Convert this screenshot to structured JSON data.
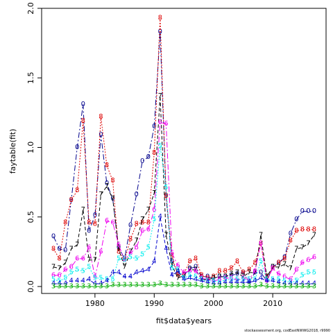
{
  "chart_data": {
    "type": "line",
    "xlabel": "fit$data$years",
    "ylabel": "faytable(fit)",
    "xlim": [
      1971,
      2019
    ],
    "ylim": [
      -0.05,
      2.0
    ],
    "xticks": [
      1980,
      1990,
      2000,
      2010
    ],
    "yticks": [
      0.0,
      0.5,
      1.0,
      1.5,
      2.0
    ],
    "ytick_labels": [
      "0.0",
      "0.5",
      "1.0",
      "1.5",
      "2.0"
    ],
    "grid": false,
    "legend": "none",
    "x": [
      1973,
      1974,
      1975,
      1976,
      1977,
      1978,
      1979,
      1980,
      1981,
      1982,
      1983,
      1984,
      1985,
      1986,
      1987,
      1988,
      1989,
      1990,
      1991,
      1992,
      1993,
      1994,
      1995,
      1996,
      1997,
      1998,
      1999,
      2000,
      2001,
      2002,
      2003,
      2004,
      2005,
      2006,
      2007,
      2008,
      2009,
      2010,
      2011,
      2012,
      2013,
      2014,
      2015,
      2016,
      2017
    ],
    "series": [
      {
        "marker": "0",
        "color": "#00008B",
        "dash": "8,3,2,3",
        "values": [
          0.36,
          0.27,
          0.26,
          0.62,
          1.0,
          1.31,
          0.4,
          0.51,
          1.09,
          0.74,
          0.63,
          0.28,
          0.2,
          0.44,
          0.66,
          0.9,
          0.93,
          1.15,
          1.83,
          0.65,
          0.18,
          0.1,
          0.08,
          0.13,
          0.14,
          0.07,
          0.07,
          0.06,
          0.07,
          0.07,
          0.08,
          0.09,
          0.1,
          0.03,
          0.1,
          0.1,
          0.04,
          0.14,
          0.17,
          0.21,
          0.38,
          0.48,
          0.54,
          0.54,
          0.54
        ]
      },
      {
        "marker": "8",
        "color": "#DD0000",
        "dash": "2,2",
        "values": [
          0.27,
          0.2,
          0.46,
          0.62,
          0.69,
          1.19,
          0.46,
          0.45,
          1.22,
          0.87,
          0.76,
          0.25,
          0.19,
          0.34,
          0.45,
          0.46,
          0.46,
          0.96,
          1.93,
          0.65,
          0.22,
          0.08,
          0.09,
          0.18,
          0.2,
          0.08,
          0.06,
          0.07,
          0.11,
          0.11,
          0.13,
          0.18,
          0.1,
          0.12,
          0.17,
          0.31,
          0.07,
          0.13,
          0.17,
          0.2,
          0.33,
          0.4,
          0.41,
          0.41,
          0.41
        ]
      },
      {
        "marker": "7",
        "color": "#000000",
        "dash": "5,3",
        "values": [
          0.14,
          0.13,
          0.17,
          0.27,
          0.3,
          0.55,
          0.19,
          0.19,
          0.66,
          0.72,
          0.63,
          0.27,
          0.14,
          0.25,
          0.33,
          0.48,
          0.55,
          0.67,
          1.37,
          0.37,
          0.15,
          0.06,
          0.08,
          0.12,
          0.12,
          0.05,
          0.05,
          0.06,
          0.07,
          0.07,
          0.09,
          0.1,
          0.07,
          0.1,
          0.1,
          0.37,
          0.07,
          0.14,
          0.14,
          0.16,
          0.13,
          0.27,
          0.28,
          0.31,
          0.37
        ]
      },
      {
        "marker": "6",
        "color": "#EE00EE",
        "dash": "8,3,2,3",
        "values": [
          0.08,
          0.08,
          0.12,
          0.14,
          0.2,
          0.2,
          0.28,
          0.07,
          0.25,
          0.47,
          0.46,
          0.3,
          0.19,
          0.24,
          0.28,
          0.4,
          0.41,
          0.55,
          1.18,
          1.17,
          0.24,
          0.15,
          0.1,
          0.11,
          0.11,
          0.06,
          0.05,
          0.04,
          0.05,
          0.06,
          0.06,
          0.05,
          0.06,
          0.05,
          0.11,
          0.31,
          0.04,
          0.13,
          0.09,
          0.07,
          0.05,
          0.12,
          0.17,
          0.19,
          0.21
        ]
      },
      {
        "marker": "5",
        "color": "#00EEEE",
        "dash": "2,2",
        "values": [
          0.05,
          0.04,
          0.06,
          0.1,
          0.12,
          0.11,
          0.14,
          0.06,
          0.06,
          0.05,
          0.05,
          0.2,
          0.19,
          0.21,
          0.2,
          0.23,
          0.28,
          0.48,
          1.01,
          0.71,
          0.13,
          0.12,
          0.06,
          0.08,
          0.07,
          0.05,
          0.04,
          0.04,
          0.03,
          0.05,
          0.05,
          0.05,
          0.05,
          0.05,
          0.05,
          0.18,
          0.05,
          0.05,
          0.05,
          0.04,
          0.03,
          0.04,
          0.08,
          0.1,
          0.1
        ]
      },
      {
        "marker": "4",
        "color": "#0000CD",
        "dash": "5,3",
        "values": [
          0.02,
          0.02,
          0.02,
          0.04,
          0.04,
          0.04,
          0.05,
          0.02,
          0.02,
          0.04,
          0.1,
          0.1,
          0.07,
          0.07,
          0.1,
          0.11,
          0.12,
          0.18,
          0.5,
          0.27,
          0.08,
          0.11,
          0.05,
          0.06,
          0.05,
          0.04,
          0.03,
          0.02,
          0.02,
          0.03,
          0.03,
          0.03,
          0.03,
          0.03,
          0.04,
          0.06,
          0.04,
          0.04,
          0.03,
          0.02,
          0.02,
          0.02,
          0.02,
          0.02,
          0.02
        ]
      },
      {
        "marker": "3",
        "color": "#00AA00",
        "dash": "",
        "values": [
          0.0,
          0.0,
          0.0,
          0.0,
          0.0,
          0.0,
          0.0,
          0.0,
          0.0,
          0.0,
          0.01,
          0.01,
          0.01,
          0.01,
          0.01,
          0.01,
          0.01,
          0.01,
          0.02,
          0.01,
          0.01,
          0.01,
          0.01,
          0.01,
          0.01,
          0.0,
          0.0,
          0.0,
          0.0,
          0.0,
          0.0,
          0.0,
          0.0,
          0.0,
          0.0,
          0.01,
          0.0,
          0.0,
          0.0,
          0.0,
          0.0,
          0.0,
          0.0,
          0.0,
          0.0
        ]
      }
    ]
  },
  "footer": {
    "text": "stockassessment.org, codEastNWWG2018, r9990"
  }
}
